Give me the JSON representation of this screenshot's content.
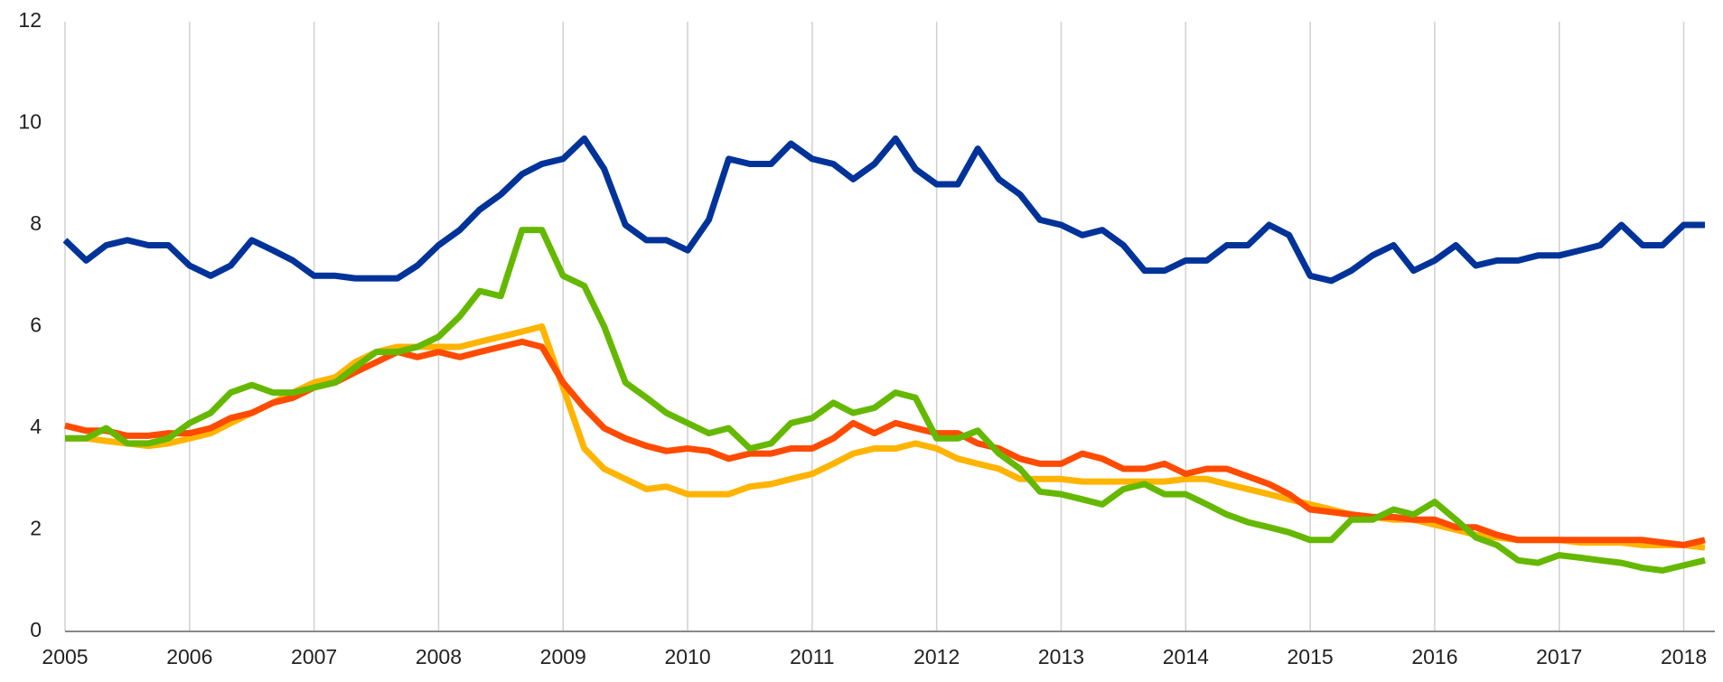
{
  "chart_data": {
    "type": "line",
    "x": [
      2005,
      2005.17,
      2005.33,
      2005.5,
      2005.67,
      2005.83,
      2006,
      2006.17,
      2006.33,
      2006.5,
      2006.67,
      2006.83,
      2007,
      2007.17,
      2007.33,
      2007.5,
      2007.67,
      2007.83,
      2008,
      2008.17,
      2008.33,
      2008.5,
      2008.67,
      2008.83,
      2009,
      2009.17,
      2009.33,
      2009.5,
      2009.67,
      2009.83,
      2010,
      2010.17,
      2010.33,
      2010.5,
      2010.67,
      2010.83,
      2011,
      2011.17,
      2011.33,
      2011.5,
      2011.67,
      2011.83,
      2012,
      2012.17,
      2012.33,
      2012.5,
      2012.67,
      2012.83,
      2013,
      2013.17,
      2013.33,
      2013.5,
      2013.67,
      2013.83,
      2014,
      2014.17,
      2014.33,
      2014.5,
      2014.67,
      2014.83,
      2015,
      2015.17,
      2015.33,
      2015.5,
      2015.67,
      2015.83,
      2016,
      2016.17,
      2016.33,
      2016.5,
      2016.67,
      2016.83,
      2017,
      2017.17,
      2017.33,
      2017.5,
      2017.67,
      2017.83,
      2018,
      2018.17
    ],
    "series": [
      {
        "color": "#ffb400",
        "values": [
          3.8,
          3.8,
          3.75,
          3.7,
          3.65,
          3.7,
          3.8,
          3.9,
          4.1,
          4.3,
          4.5,
          4.7,
          4.9,
          5.0,
          5.3,
          5.5,
          5.6,
          5.6,
          5.6,
          5.6,
          5.7,
          5.8,
          5.9,
          6.0,
          4.8,
          3.6,
          3.2,
          3.0,
          2.8,
          2.85,
          2.7,
          2.7,
          2.7,
          2.85,
          2.9,
          3.0,
          3.1,
          3.3,
          3.5,
          3.6,
          3.6,
          3.7,
          3.6,
          3.4,
          3.3,
          3.2,
          3.0,
          3.0,
          3.0,
          2.95,
          2.95,
          2.95,
          2.95,
          2.95,
          3.0,
          3.0,
          2.9,
          2.8,
          2.7,
          2.6,
          2.5,
          2.4,
          2.3,
          2.25,
          2.2,
          2.2,
          2.1,
          2.0,
          1.9,
          1.85,
          1.8,
          1.8,
          1.8,
          1.75,
          1.75,
          1.75,
          1.7,
          1.7,
          1.7,
          1.65
        ]
      },
      {
        "color": "#ff4b00",
        "values": [
          4.05,
          3.95,
          3.95,
          3.85,
          3.85,
          3.9,
          3.9,
          4.0,
          4.2,
          4.3,
          4.5,
          4.6,
          4.8,
          4.9,
          5.1,
          5.3,
          5.5,
          5.4,
          5.5,
          5.4,
          5.5,
          5.6,
          5.7,
          5.6,
          4.9,
          4.4,
          4.0,
          3.8,
          3.65,
          3.55,
          3.6,
          3.55,
          3.4,
          3.5,
          3.5,
          3.6,
          3.6,
          3.8,
          4.1,
          3.9,
          4.1,
          4.0,
          3.9,
          3.9,
          3.7,
          3.6,
          3.4,
          3.3,
          3.3,
          3.5,
          3.4,
          3.2,
          3.2,
          3.3,
          3.1,
          3.2,
          3.2,
          3.05,
          2.9,
          2.7,
          2.4,
          2.35,
          2.3,
          2.25,
          2.25,
          2.2,
          2.2,
          2.05,
          2.05,
          1.9,
          1.8,
          1.8,
          1.8,
          1.8,
          1.8,
          1.8,
          1.8,
          1.75,
          1.7,
          1.8
        ]
      },
      {
        "color": "#65b800",
        "values": [
          3.8,
          3.8,
          4.0,
          3.7,
          3.7,
          3.8,
          4.1,
          4.3,
          4.7,
          4.85,
          4.7,
          4.7,
          4.8,
          4.9,
          5.2,
          5.5,
          5.5,
          5.6,
          5.8,
          6.2,
          6.7,
          6.6,
          7.9,
          7.9,
          7.0,
          6.8,
          6.0,
          4.9,
          4.6,
          4.3,
          4.1,
          3.9,
          4.0,
          3.6,
          3.7,
          4.1,
          4.2,
          4.5,
          4.3,
          4.4,
          4.7,
          4.6,
          3.8,
          3.8,
          3.95,
          3.5,
          3.2,
          2.75,
          2.7,
          2.6,
          2.5,
          2.8,
          2.9,
          2.7,
          2.7,
          2.5,
          2.3,
          2.15,
          2.05,
          1.95,
          1.8,
          1.8,
          2.2,
          2.2,
          2.4,
          2.3,
          2.55,
          2.2,
          1.85,
          1.7,
          1.4,
          1.35,
          1.5,
          1.45,
          1.4,
          1.35,
          1.25,
          1.2,
          1.3,
          1.4
        ]
      },
      {
        "color": "#003399",
        "values": [
          7.7,
          7.3,
          7.6,
          7.7,
          7.6,
          7.6,
          7.2,
          7.0,
          7.2,
          7.7,
          7.5,
          7.3,
          7.0,
          7.0,
          6.95,
          6.95,
          6.95,
          7.2,
          7.6,
          7.9,
          8.3,
          8.6,
          9.0,
          9.2,
          9.3,
          9.7,
          9.1,
          8.0,
          7.7,
          7.7,
          7.5,
          8.1,
          9.3,
          9.2,
          9.2,
          9.6,
          9.3,
          9.2,
          8.9,
          9.2,
          9.7,
          9.1,
          8.8,
          8.8,
          9.5,
          8.9,
          8.6,
          8.1,
          8.0,
          7.8,
          7.9,
          7.6,
          7.1,
          7.1,
          7.3,
          7.3,
          7.6,
          7.6,
          8.0,
          7.8,
          7.0,
          6.9,
          7.1,
          7.4,
          7.6,
          7.1,
          7.3,
          7.6,
          7.2,
          7.3,
          7.3,
          7.4,
          7.4,
          7.5,
          7.6,
          8.0,
          7.6,
          7.6,
          8.0,
          8.0
        ]
      }
    ],
    "xlim": [
      2005,
      2018.25
    ],
    "xticks": [
      2005,
      2006,
      2007,
      2008,
      2009,
      2010,
      2011,
      2012,
      2013,
      2014,
      2015,
      2016,
      2017,
      2018
    ],
    "ylim": [
      0,
      12
    ],
    "yticks": [
      0,
      2,
      4,
      6,
      8,
      10,
      12
    ],
    "grid": "x"
  }
}
